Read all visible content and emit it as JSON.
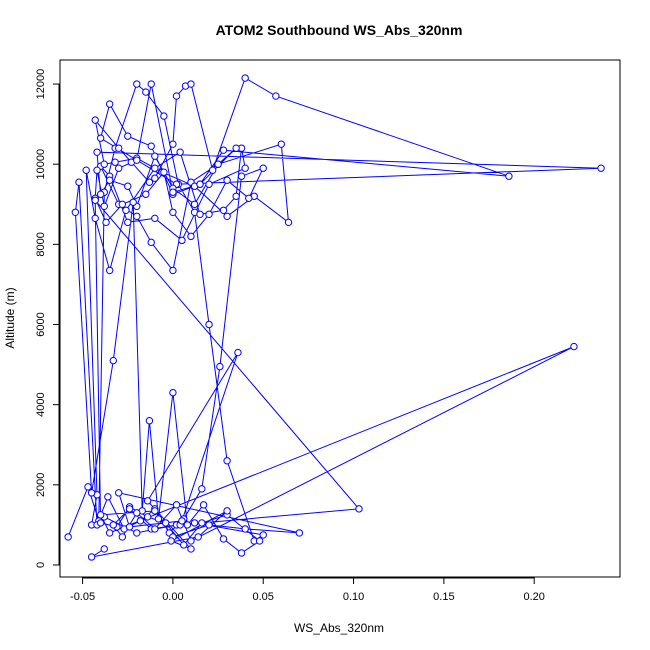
{
  "chart_data": {
    "type": "scatter",
    "title": "ATOM2 Southbound WS_Abs_320nm",
    "xlabel": "WS_Abs_320nm",
    "ylabel": "Altitude (m)",
    "xlim": [
      -0.0625,
      0.2475
    ],
    "ylim": [
      -300,
      12600
    ],
    "xticks": [
      -0.05,
      0.0,
      0.05,
      0.1,
      0.15,
      0.2
    ],
    "xtick_labels": [
      "-0.05",
      "0.00",
      "0.05",
      "0.10",
      "0.15",
      "0.20"
    ],
    "yticks": [
      0,
      2000,
      4000,
      6000,
      8000,
      10000,
      12000
    ],
    "ytick_labels": [
      "0",
      "2000",
      "4000",
      "6000",
      "8000",
      "10000",
      "12000"
    ],
    "grid": false,
    "series_color": "#0000FF",
    "marker": "open-circle",
    "connected": true,
    "series": [
      {
        "x": [
          -0.058,
          -0.047,
          -0.041,
          -0.038,
          -0.032,
          -0.02,
          -0.015,
          -0.005,
          0.003,
          0.012,
          0.02,
          0.03,
          0.045,
          0.05,
          0.012,
          0.002,
          -0.02,
          -0.038,
          -0.045,
          -0.042,
          -0.048,
          -0.043,
          -0.035,
          -0.026,
          -0.01,
          0.004,
          0.015,
          0.028,
          0.035,
          0.038,
          0.04,
          0.02,
          0.005,
          -0.01,
          -0.025,
          -0.035,
          -0.04,
          -0.03,
          -0.02,
          -0.012,
          0.0,
          0.01,
          0.025,
          0.06,
          0.064,
          0.045,
          0.03,
          0.012,
          -0.006,
          -0.02,
          -0.032,
          -0.038,
          -0.043,
          -0.03,
          -0.023,
          -0.013,
          -0.01,
          0.0,
          0.002,
          0.007,
          0.01,
          0.022,
          0.04,
          0.057,
          0.186,
          0.028,
          0.015,
          0.0,
          -0.012,
          -0.025,
          -0.035,
          -0.04,
          0.002,
          0.237,
          -0.042,
          -0.04,
          -0.035,
          -0.025,
          -0.02,
          -0.01,
          0.0,
          0.012,
          0.025,
          0.035,
          0.015,
          0.0,
          -0.012,
          -0.02,
          -0.03,
          -0.038,
          -0.042,
          -0.043,
          -0.037,
          -0.028,
          -0.015,
          -0.005,
          0.0,
          0.01,
          0.02,
          0.03,
          0.042,
          0.05,
          0.038,
          0.026,
          0.016,
          0.006,
          -0.002,
          -0.01,
          -0.018,
          -0.027,
          -0.036,
          -0.042,
          -0.052,
          -0.054,
          -0.045,
          -0.033,
          -0.022,
          -0.017,
          -0.013,
          -0.008,
          0.0,
          0.008,
          0.017,
          0.028,
          0.038,
          0.048,
          0.03,
          0.016,
          0.006,
          -0.004,
          -0.014,
          -0.024,
          -0.031,
          -0.04,
          -0.043,
          0.103,
          0.004,
          -0.012,
          -0.024,
          -0.033,
          -0.028,
          -0.02,
          -0.01,
          0.002,
          0.01,
          0.222,
          -0.035,
          -0.04,
          -0.01,
          0.0,
          0.02,
          0.04,
          0.07,
          -0.03,
          -0.024,
          0.005,
          0.036,
          -0.014,
          0.01,
          -0.001,
          0.03,
          0.014,
          -0.045,
          -0.038
        ],
        "y": [
          700,
          1950,
          1100,
          9300,
          10400,
          12000,
          11800,
          11200,
          9500,
          8800,
          6000,
          2600,
          600,
          750,
          1050,
          1000,
          800,
          1200,
          1000,
          1750,
          9850,
          8650,
          7350,
          8850,
          9900,
          10300,
          8750,
          8850,
          9200,
          10400,
          9900,
          9500,
          8100,
          8650,
          8550,
          9700,
          9950,
          9000,
          8700,
          8050,
          7350,
          9550,
          10000,
          10500,
          8550,
          9200,
          8700,
          9450,
          9800,
          10150,
          10050,
          10000,
          11100,
          10400,
          10050,
          9550,
          9650,
          10500,
          11700,
          11950,
          12000,
          9850,
          12150,
          11700,
          9700,
          10350,
          9500,
          9250,
          10450,
          10700,
          11500,
          10650,
          9500,
          9900,
          10300,
          9250,
          9600,
          9450,
          8950,
          10200,
          9400,
          9000,
          10000,
          10400,
          9500,
          9300,
          12000,
          10100,
          9900,
          8950,
          9850,
          9150,
          8550,
          9000,
          9250,
          9800,
          8800,
          8200,
          8750,
          9600,
          9150,
          9900,
          9700,
          4950,
          1900,
          1150,
          800,
          1400,
          1100,
          900,
          1700,
          1000,
          9550,
          8800,
          1800,
          5100,
          9050,
          1350,
          3600,
          1150,
          4300,
          1000,
          1500,
          650,
          300,
          600,
          1250,
          1050,
          500,
          1050,
          1200,
          1450,
          950,
          1050,
          9100,
          1400,
          1000,
          900,
          1400,
          1000,
          700,
          1300,
          900,
          1500,
          600,
          5450,
          800,
          1250,
          1350,
          700,
          1000,
          900,
          800,
          1800,
          950,
          1100,
          5300,
          1600,
          400,
          600,
          1350,
          700,
          200,
          400
        ]
      }
    ]
  }
}
